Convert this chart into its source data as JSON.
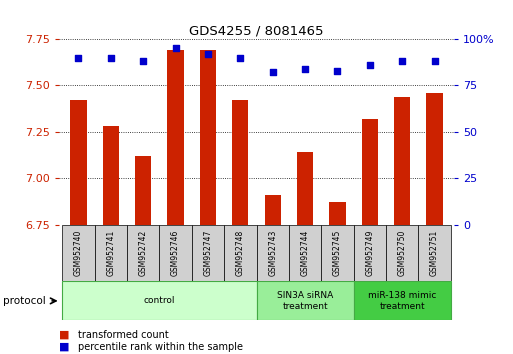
{
  "title": "GDS4255 / 8081465",
  "samples": [
    "GSM952740",
    "GSM952741",
    "GSM952742",
    "GSM952746",
    "GSM952747",
    "GSM952748",
    "GSM952743",
    "GSM952744",
    "GSM952745",
    "GSM952749",
    "GSM952750",
    "GSM952751"
  ],
  "transformed_count": [
    7.42,
    7.28,
    7.12,
    7.69,
    7.69,
    7.42,
    6.91,
    7.14,
    6.87,
    7.32,
    7.44,
    7.46
  ],
  "percentile_rank": [
    90,
    90,
    88,
    95,
    92,
    90,
    82,
    84,
    83,
    86,
    88,
    88
  ],
  "ylim_left": [
    6.75,
    7.75
  ],
  "ylim_right": [
    0,
    100
  ],
  "yticks_left": [
    6.75,
    7.0,
    7.25,
    7.5,
    7.75
  ],
  "yticks_right": [
    0,
    25,
    50,
    75,
    100
  ],
  "bar_color": "#cc2200",
  "dot_color": "#0000cc",
  "groups": [
    {
      "label": "control",
      "start": 0,
      "end": 6,
      "color": "#ccffcc"
    },
    {
      "label": "SIN3A siRNA\ntreatment",
      "start": 6,
      "end": 9,
      "color": "#99ee99"
    },
    {
      "label": "miR-138 mimic\ntreatment",
      "start": 9,
      "end": 12,
      "color": "#44cc44"
    }
  ],
  "protocol_label": "protocol",
  "legend_bar_label": "transformed count",
  "legend_dot_label": "percentile rank within the sample",
  "tick_color_left": "#cc2200",
  "tick_color_right": "#0000cc",
  "label_box_color": "#d0d0d0",
  "grid_linestyle": "dotted",
  "bar_width": 0.5
}
